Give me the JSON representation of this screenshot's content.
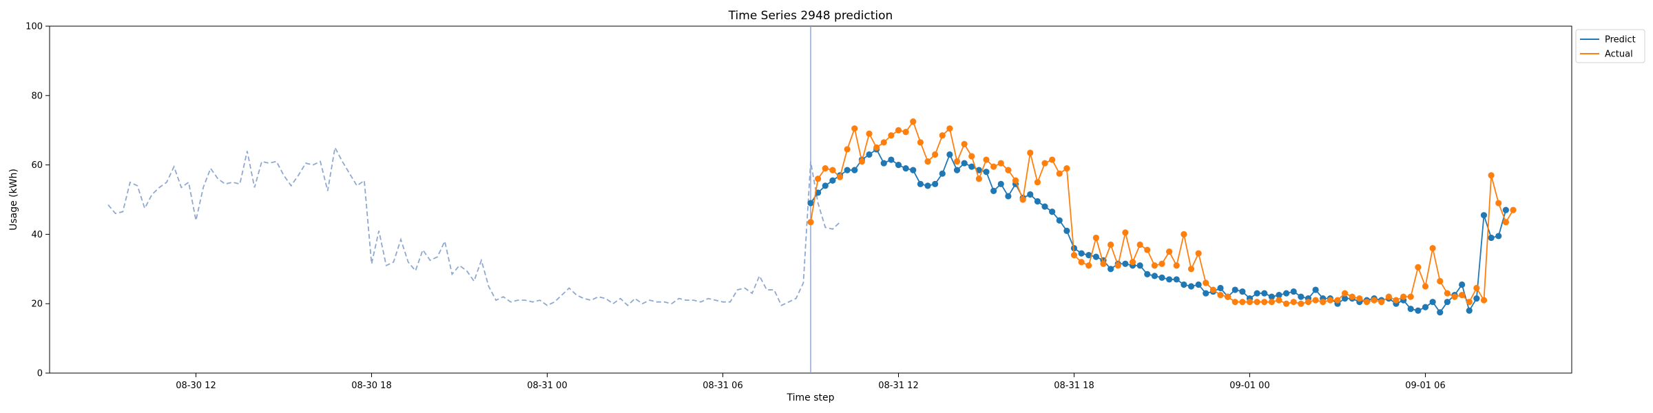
{
  "chart_data": {
    "type": "line",
    "title": "Time Series 2948 prediction",
    "xlabel": "Time step",
    "ylabel": "Usage (kWh)",
    "ylim": [
      0,
      100
    ],
    "yticks": [
      0,
      20,
      40,
      60,
      80,
      100
    ],
    "xlim": [
      "2024-08-30 07:00",
      "2024-09-01 11:00"
    ],
    "xticks": [
      {
        "t": "2024-08-30 12:00",
        "label": "08-30 12"
      },
      {
        "t": "2024-08-30 18:00",
        "label": "08-30 18"
      },
      {
        "t": "2024-08-31 00:00",
        "label": "08-31 00"
      },
      {
        "t": "2024-08-31 06:00",
        "label": "08-31 06"
      },
      {
        "t": "2024-08-31 12:00",
        "label": "08-31 12"
      },
      {
        "t": "2024-08-31 18:00",
        "label": "08-31 18"
      },
      {
        "t": "2024-09-01 00:00",
        "label": "09-01 00"
      },
      {
        "t": "2024-09-01 06:00",
        "label": "09-01 06"
      }
    ],
    "grid": false,
    "legend": "top-right",
    "colors": {
      "predict": "#1f77b4",
      "actual": "#ff7f0e",
      "history": "#8ea8cf",
      "divider": "#7f9bd0"
    },
    "divider_time": "2024-08-31 09:00",
    "history": {
      "start": "2024-08-30 09:00",
      "step_minutes": 15,
      "values": [
        48.5,
        46,
        46.5,
        55,
        54,
        47.5,
        51.5,
        53.5,
        55,
        59.5,
        53.5,
        55,
        44,
        53.5,
        59,
        56,
        54.5,
        55,
        54.5,
        64,
        53.5,
        61,
        60.5,
        61,
        57,
        54,
        57,
        60.5,
        60,
        61,
        52.5,
        65,
        61,
        57.5,
        54,
        55.5,
        31.5,
        41,
        31,
        32,
        38.5,
        32,
        29.5,
        35.5,
        32.5,
        33.5,
        38,
        28.5,
        31,
        29.5,
        26.5,
        32.5,
        25,
        21,
        22,
        20.5,
        21,
        21,
        20.5,
        21,
        19.5,
        20.5,
        22.5,
        24.5,
        22.5,
        21.5,
        21,
        22,
        21.5,
        20,
        21.5,
        19.5,
        21.5,
        20,
        21,
        20.5,
        20.5,
        20,
        21.5,
        21,
        21,
        20.5,
        21.5,
        21,
        20.5,
        20.5,
        24,
        24.5,
        23,
        28,
        24,
        24,
        19.5,
        20.5,
        21.5,
        26,
        61,
        49,
        42,
        41.5,
        43.5
      ]
    },
    "series": [
      {
        "name": "Predict",
        "start": "2024-08-31 09:00",
        "step_minutes": 15,
        "values": [
          49,
          52,
          54,
          55.5,
          57,
          58.5,
          58.5,
          61.5,
          63,
          64.5,
          60.5,
          61.5,
          60,
          59,
          58.5,
          54.5,
          54,
          54.5,
          57.5,
          63,
          58.5,
          60.5,
          59.5,
          58.5,
          58,
          52.5,
          54.5,
          51,
          54.5,
          50.5,
          51.5,
          49.5,
          48,
          46.5,
          44,
          41,
          36,
          34.5,
          34,
          33.5,
          32.5,
          30,
          31.5,
          31.5,
          31,
          31,
          28.5,
          28,
          27.5,
          27,
          27,
          25.5,
          25,
          25.5,
          23,
          23.5,
          24.5,
          22,
          24,
          23.5,
          21.5,
          23,
          23,
          22,
          22.5,
          23,
          23.5,
          22,
          21.5,
          24,
          21.5,
          21.5,
          20,
          21.5,
          21.5,
          20.5,
          21,
          21.5,
          21,
          21.5,
          20,
          21,
          18.5,
          18,
          19,
          20.5,
          17.5,
          20.5,
          22.5,
          25.5,
          18,
          21.5,
          45.5,
          39,
          39.5,
          47
        ]
      },
      {
        "name": "Actual",
        "start": "2024-08-31 09:00",
        "step_minutes": 15,
        "values": [
          43.5,
          56,
          59,
          58.5,
          56.5,
          64.5,
          70.5,
          61,
          69,
          65,
          66.5,
          68.5,
          70,
          69.5,
          72.5,
          66.5,
          61,
          63,
          68.5,
          70.5,
          61,
          66,
          62.5,
          56,
          61.5,
          59.5,
          60.5,
          58.5,
          55.5,
          50,
          63.5,
          55,
          60.5,
          61.5,
          57.5,
          59,
          34,
          32,
          31,
          39,
          31.5,
          37,
          31,
          40.5,
          32,
          37,
          35.5,
          31,
          31.5,
          35,
          31,
          40,
          30,
          34.5,
          26,
          24,
          22.5,
          22,
          20.5,
          20.5,
          20.5,
          20.5,
          20.5,
          20.5,
          21,
          20,
          20.5,
          20,
          20.5,
          21,
          20.5,
          21,
          21,
          23,
          22,
          21.5,
          20.5,
          21,
          20.5,
          22,
          21,
          22,
          22,
          30.5,
          25,
          36,
          26.5,
          23,
          22,
          22.5,
          20.5,
          24.5,
          21,
          57,
          49,
          43.5,
          47
        ]
      }
    ]
  }
}
